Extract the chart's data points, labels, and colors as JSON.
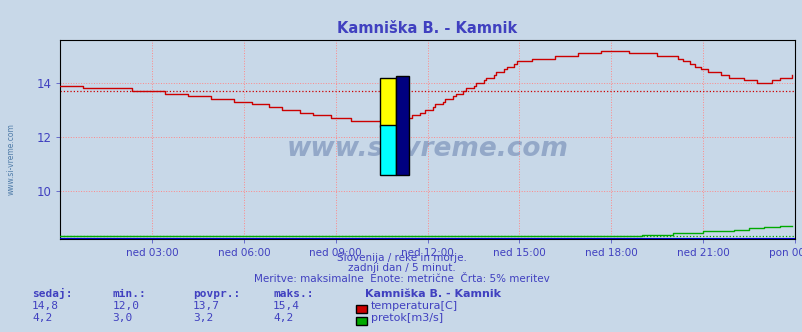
{
  "title": "Kamniška B. - Kamnik",
  "fig_bg_color": "#c8d8e8",
  "plot_bg_color": "#c8d8e8",
  "text_color": "#4040c0",
  "grid_color_v": "#ff8888",
  "grid_color_h": "#ff8888",
  "xlabel_ticks": [
    "ned 03:00",
    "ned 06:00",
    "ned 09:00",
    "ned 12:00",
    "ned 15:00",
    "ned 18:00",
    "ned 21:00",
    "pon 00:00"
  ],
  "yticks": [
    10,
    12,
    14
  ],
  "ylim": [
    8.2,
    15.6
  ],
  "xlim": [
    0,
    288
  ],
  "temp_avg_line": 13.7,
  "subtitle1": "Slovenija / reke in morje.",
  "subtitle2": "zadnji dan / 5 minut.",
  "subtitle3": "Meritve: maksimalne  Enote: metrične  Črta: 5% meritev",
  "legend_title": "Kamniška B. - Kamnik",
  "legend_items": [
    {
      "label": "temperatura[C]",
      "color": "#cc0000"
    },
    {
      "label": "pretok[m3/s]",
      "color": "#00aa00"
    }
  ],
  "stats_headers": [
    "sedaj:",
    "min.:",
    "povpr.:",
    "maks.:"
  ],
  "stats_temp": [
    "14,8",
    "12,0",
    "13,7",
    "15,4"
  ],
  "stats_flow": [
    "4,2",
    "3,0",
    "3,2",
    "4,2"
  ],
  "temp_color": "#cc0000",
  "flow_color": "#00aa00",
  "border_color": "#000080",
  "watermark": "www.si-vreme.com",
  "watermark_color": "#1a3a80",
  "left_label": "www.si-vreme.com"
}
